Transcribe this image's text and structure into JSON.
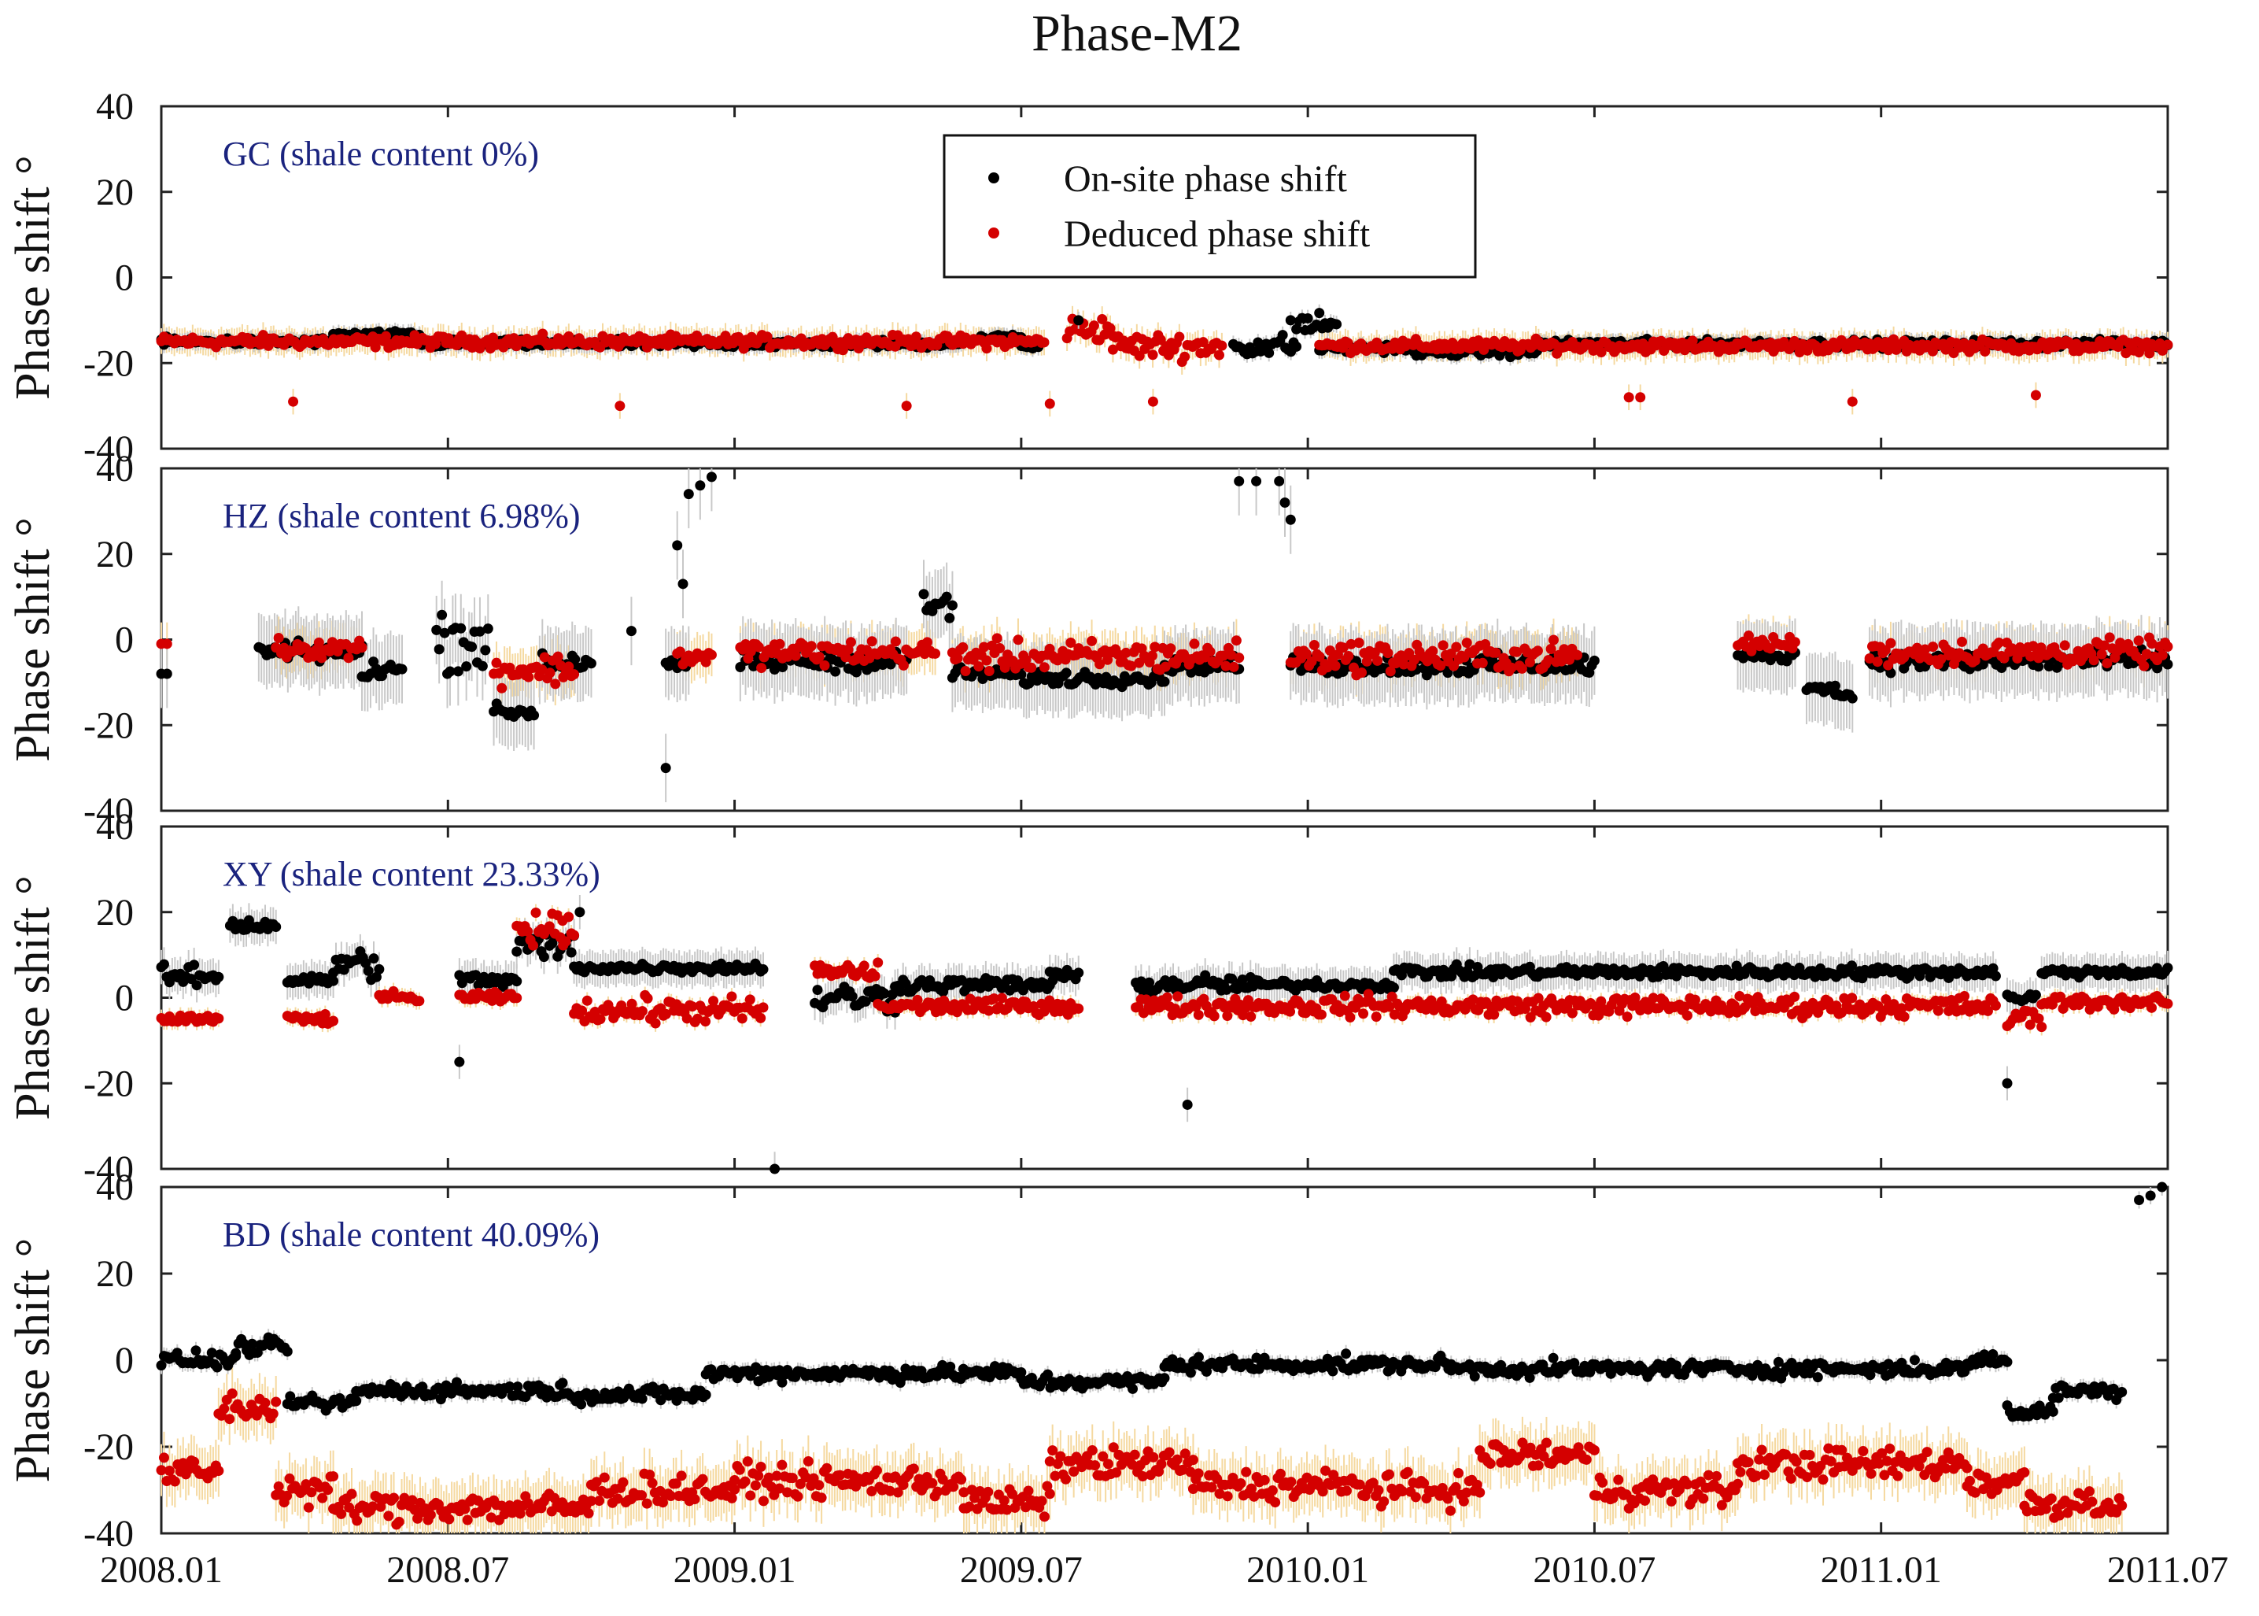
{
  "chart_data": {
    "type": "scatter",
    "title": "Phase-M2",
    "xlabel": "",
    "ylabel": "Phase shift °",
    "x_ticks": [
      "2008.01",
      "2008.07",
      "2009.01",
      "2009.07",
      "2010.01",
      "2010.07",
      "2011.01",
      "2011.07"
    ],
    "xlim": [
      2008.0,
      2011.5
    ],
    "ylim": [
      -40,
      40
    ],
    "y_ticks": [
      "40",
      "20",
      "0",
      "-20",
      "-40"
    ],
    "legend": {
      "position": "top-center",
      "entries": [
        {
          "label": "On-site phase shift",
          "color": "#000000"
        },
        {
          "label": "Deduced phase shift",
          "color": "#d40000"
        }
      ]
    },
    "colors": {
      "onsite": "#000000",
      "deduced": "#d40000",
      "onsite_error": "#c8c8c8",
      "deduced_error": "#f5d9a0",
      "panel_label": "#1a237e"
    },
    "panels": [
      {
        "label": "GC (shale content 0%)",
        "onsite_error": 2,
        "deduced_error": 3,
        "onsite": [
          {
            "segments": [
              [
                2008.0,
                2008.3,
                -15
              ],
              [
                2008.3,
                2008.45,
                -13.5
              ],
              [
                2008.45,
                2009.4,
                -15.5
              ]
            ],
            "noise": 0.8
          },
          {
            "segments": [
              [
                2009.43,
                2009.5,
                -14
              ],
              [
                2009.5,
                2009.53,
                -16
              ]
            ],
            "noise": 0.6
          },
          {
            "segments": [
              [
                2009.87,
                2009.98,
                -16
              ],
              [
                2009.98,
                2010.05,
                -11
              ]
            ],
            "noise": 2.2
          },
          {
            "segments": [
              [
                2010.02,
                2010.18,
                -16.5
              ],
              [
                2010.18,
                2010.4,
                -17.5
              ],
              [
                2010.4,
                2011.5,
                -15.5
              ]
            ],
            "noise": 0.8
          }
        ],
        "deduced": [
          {
            "segments": [
              [
                2008.0,
                2009.54,
                -15
              ]
            ],
            "noise": 1.2
          },
          {
            "segments": [
              [
                2009.58,
                2009.66,
                -12
              ],
              [
                2009.66,
                2009.85,
                -16
              ]
            ],
            "noise": 2.5
          },
          {
            "segments": [
              [
                2010.02,
                2011.5,
                -16
              ]
            ],
            "noise": 1.2
          }
        ],
        "outliers": [
          {
            "x": 2008.23,
            "y": -29,
            "s": "deduced"
          },
          {
            "x": 2008.8,
            "y": -30,
            "s": "deduced"
          },
          {
            "x": 2009.3,
            "y": -30,
            "s": "deduced"
          },
          {
            "x": 2009.55,
            "y": -29.5,
            "s": "deduced"
          },
          {
            "x": 2009.73,
            "y": -29,
            "s": "deduced"
          },
          {
            "x": 2010.56,
            "y": -28,
            "s": "deduced"
          },
          {
            "x": 2010.58,
            "y": -28,
            "s": "deduced"
          },
          {
            "x": 2010.95,
            "y": -29,
            "s": "deduced"
          },
          {
            "x": 2011.27,
            "y": -27.5,
            "s": "deduced"
          },
          {
            "x": 2009.6,
            "y": -10,
            "s": "onsite"
          },
          {
            "x": 2009.97,
            "y": -10,
            "s": "onsite"
          },
          {
            "x": 2009.99,
            "y": -9.5,
            "s": "onsite"
          }
        ]
      },
      {
        "label": "HZ (shale content 6.98%)",
        "onsite_error": 8,
        "deduced_error": 5,
        "onsite": [
          {
            "segments": [
              [
                2008.0,
                2008.01,
                -8
              ]
            ],
            "noise": 0
          },
          {
            "segments": [
              [
                2008.17,
                2008.35,
                -3
              ],
              [
                2008.35,
                2008.42,
                -7
              ]
            ],
            "noise": 2
          },
          {
            "segments": [
              [
                2008.48,
                2008.57,
                0
              ]
            ],
            "noise": 6
          },
          {
            "segments": [
              [
                2008.58,
                2008.65,
                -17
              ]
            ],
            "noise": 1.5
          },
          {
            "segments": [
              [
                2008.66,
                2008.75,
                -5
              ]
            ],
            "noise": 3
          },
          {
            "segments": [
              [
                2008.88,
                2008.92,
                -6
              ]
            ],
            "noise": 1
          },
          {
            "segments": [
              [
                2009.01,
                2009.3,
                -5
              ]
            ],
            "noise": 2
          },
          {
            "segments": [
              [
                2009.33,
                2009.38,
                8
              ]
            ],
            "noise": 3
          },
          {
            "segments": [
              [
                2009.38,
                2009.5,
                -8
              ],
              [
                2009.5,
                2009.75,
                -9
              ],
              [
                2009.75,
                2009.88,
                -6
              ]
            ],
            "noise": 1.5
          },
          {
            "segments": [
              [
                2009.97,
                2010.5,
                -6
              ]
            ],
            "noise": 2
          },
          {
            "segments": [
              [
                2010.75,
                2010.85,
                -4
              ]
            ],
            "noise": 1
          },
          {
            "segments": [
              [
                2010.87,
                2010.92,
                -11
              ],
              [
                2010.92,
                2010.95,
                -13
              ]
            ],
            "noise": 1
          },
          {
            "segments": [
              [
                2010.98,
                2011.5,
                -5
              ]
            ],
            "noise": 2
          }
        ],
        "deduced": [
          {
            "segments": [
              [
                2008.0,
                2008.01,
                -1
              ]
            ],
            "noise": 0
          },
          {
            "segments": [
              [
                2008.2,
                2008.35,
                -2
              ]
            ],
            "noise": 2
          },
          {
            "segments": [
              [
                2008.58,
                2008.72,
                -7
              ]
            ],
            "noise": 3
          },
          {
            "segments": [
              [
                2008.9,
                2008.96,
                -4
              ]
            ],
            "noise": 2
          },
          {
            "segments": [
              [
                2009.01,
                2009.35,
                -3
              ]
            ],
            "noise": 2.5
          },
          {
            "segments": [
              [
                2009.38,
                2009.88,
                -4
              ]
            ],
            "noise": 3
          },
          {
            "segments": [
              [
                2009.97,
                2010.47,
                -4
              ]
            ],
            "noise": 3
          },
          {
            "segments": [
              [
                2010.75,
                2010.85,
                -1
              ]
            ],
            "noise": 1.5
          },
          {
            "segments": [
              [
                2010.98,
                2011.5,
                -3
              ]
            ],
            "noise": 2.5
          }
        ],
        "outliers": [
          {
            "x": 2008.88,
            "y": -30,
            "s": "onsite"
          },
          {
            "x": 2008.9,
            "y": 22,
            "s": "onsite"
          },
          {
            "x": 2008.91,
            "y": 13,
            "s": "onsite"
          },
          {
            "x": 2008.92,
            "y": 34,
            "s": "onsite"
          },
          {
            "x": 2008.94,
            "y": 36,
            "s": "onsite"
          },
          {
            "x": 2008.96,
            "y": 38,
            "s": "onsite"
          },
          {
            "x": 2009.88,
            "y": 37,
            "s": "onsite"
          },
          {
            "x": 2009.91,
            "y": 37,
            "s": "onsite"
          },
          {
            "x": 2009.95,
            "y": 37,
            "s": "onsite"
          },
          {
            "x": 2009.96,
            "y": 32,
            "s": "onsite"
          },
          {
            "x": 2009.97,
            "y": 28,
            "s": "onsite"
          },
          {
            "x": 2008.82,
            "y": 2,
            "s": "onsite"
          }
        ]
      },
      {
        "label": "XY (shale content 23.33%)",
        "onsite_error": 4,
        "deduced_error": 2,
        "onsite": [
          {
            "segments": [
              [
                2008.0,
                2008.1,
                5
              ]
            ],
            "noise": 2
          },
          {
            "segments": [
              [
                2008.12,
                2008.2,
                17
              ]
            ],
            "noise": 1.5
          },
          {
            "segments": [
              [
                2008.22,
                2008.3,
                4
              ]
            ],
            "noise": 1
          },
          {
            "segments": [
              [
                2008.3,
                2008.38,
                8
              ]
            ],
            "noise": 3
          },
          {
            "segments": [
              [
                2008.52,
                2008.62,
                4
              ]
            ],
            "noise": 1.5
          },
          {
            "segments": [
              [
                2008.62,
                2008.72,
                12
              ]
            ],
            "noise": 3
          },
          {
            "segments": [
              [
                2008.72,
                2009.05,
                7
              ]
            ],
            "noise": 1
          },
          {
            "segments": [
              [
                2009.14,
                2009.28,
                0
              ]
            ],
            "noise": 3
          },
          {
            "segments": [
              [
                2009.28,
                2009.55,
                3
              ]
            ],
            "noise": 1.5
          },
          {
            "segments": [
              [
                2009.55,
                2009.6,
                5
              ]
            ],
            "noise": 1
          },
          {
            "segments": [
              [
                2009.7,
                2009.9,
                3
              ]
            ],
            "noise": 2
          },
          {
            "segments": [
              [
                2009.9,
                2010.15,
                3
              ]
            ],
            "noise": 1
          },
          {
            "segments": [
              [
                2010.15,
                2011.2,
                6
              ]
            ],
            "noise": 1.2
          },
          {
            "segments": [
              [
                2011.22,
                2011.27,
                0
              ]
            ],
            "noise": 1
          },
          {
            "segments": [
              [
                2011.28,
                2011.5,
                6
              ]
            ],
            "noise": 1
          }
        ],
        "deduced": [
          {
            "segments": [
              [
                2008.0,
                2008.1,
                -5
              ]
            ],
            "noise": 1
          },
          {
            "segments": [
              [
                2008.22,
                2008.3,
                -5
              ]
            ],
            "noise": 1
          },
          {
            "segments": [
              [
                2008.38,
                2008.45,
                0
              ]
            ],
            "noise": 1
          },
          {
            "segments": [
              [
                2008.52,
                2008.62,
                0
              ]
            ],
            "noise": 1
          },
          {
            "segments": [
              [
                2008.62,
                2008.72,
                16
              ]
            ],
            "noise": 3
          },
          {
            "segments": [
              [
                2008.72,
                2009.05,
                -3
              ]
            ],
            "noise": 2.5
          },
          {
            "segments": [
              [
                2009.14,
                2009.25,
                6
              ]
            ],
            "noise": 2
          },
          {
            "segments": [
              [
                2009.25,
                2009.6,
                -2
              ]
            ],
            "noise": 1.5
          },
          {
            "segments": [
              [
                2009.7,
                2011.2,
                -2
              ]
            ],
            "noise": 2
          },
          {
            "segments": [
              [
                2011.22,
                2011.28,
                -5
              ]
            ],
            "noise": 2
          },
          {
            "segments": [
              [
                2011.28,
                2011.5,
                -1
              ]
            ],
            "noise": 1.5
          }
        ],
        "outliers": [
          {
            "x": 2008.52,
            "y": -15,
            "s": "onsite"
          },
          {
            "x": 2009.07,
            "y": -40,
            "s": "onsite"
          },
          {
            "x": 2009.79,
            "y": -25,
            "s": "onsite"
          },
          {
            "x": 2011.22,
            "y": -20,
            "s": "onsite"
          },
          {
            "x": 2008.73,
            "y": 20,
            "s": "onsite"
          },
          {
            "x": 2008.7,
            "y": 18,
            "s": "deduced"
          }
        ]
      },
      {
        "label": "BD (shale content 40.09%)",
        "onsite_error": 2,
        "deduced_error": 6,
        "onsite": [
          {
            "segments": [
              [
                2008.0,
                2008.13,
                0
              ],
              [
                2008.13,
                2008.22,
                3
              ],
              [
                2008.22,
                2008.34,
                -10
              ],
              [
                2008.34,
                2008.7,
                -7
              ],
              [
                2008.7,
                2008.95,
                -8
              ],
              [
                2008.95,
                2009.5,
                -3
              ],
              [
                2009.5,
                2009.75,
                -5
              ],
              [
                2009.75,
                2010.25,
                -1
              ],
              [
                2010.25,
                2011.15,
                -2
              ],
              [
                2011.15,
                2011.22,
                0
              ],
              [
                2011.22,
                2011.3,
                -12
              ],
              [
                2011.3,
                2011.42,
                -7
              ]
            ],
            "noise": 1.5
          }
        ],
        "deduced": [
          {
            "segments": [
              [
                2008.0,
                2008.1,
                -26
              ],
              [
                2008.1,
                2008.2,
                -11
              ],
              [
                2008.2,
                2008.3,
                -30
              ],
              [
                2008.3,
                2008.75,
                -34
              ],
              [
                2008.75,
                2009.0,
                -30
              ],
              [
                2009.0,
                2009.4,
                -28
              ],
              [
                2009.4,
                2009.55,
                -33
              ],
              [
                2009.55,
                2009.8,
                -24
              ],
              [
                2009.8,
                2010.1,
                -29
              ],
              [
                2010.1,
                2010.3,
                -30
              ],
              [
                2010.3,
                2010.5,
                -22
              ],
              [
                2010.5,
                2010.75,
                -30
              ],
              [
                2010.75,
                2010.95,
                -24
              ],
              [
                2010.95,
                2011.15,
                -24
              ],
              [
                2011.15,
                2011.25,
                -28
              ],
              [
                2011.25,
                2011.42,
                -33
              ]
            ],
            "noise": 3
          }
        ],
        "outliers": [
          {
            "x": 2011.45,
            "y": 37,
            "s": "onsite"
          },
          {
            "x": 2011.47,
            "y": 38,
            "s": "onsite"
          },
          {
            "x": 2011.49,
            "y": 40,
            "s": "onsite"
          }
        ]
      }
    ]
  }
}
